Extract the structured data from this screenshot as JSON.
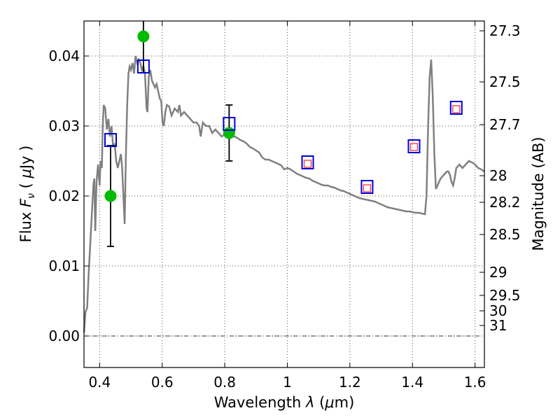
{
  "chart_data": {
    "type": "scatter",
    "xlabel_prefix": "Wavelength  ",
    "xlabel_symbol": "λ",
    "xlabel_unit_open": " (",
    "xlabel_unit_mu": "μ",
    "xlabel_unit_close": "m)",
    "ylabel_prefix": "Flux  ",
    "ylabel_symbol": "F",
    "ylabel_subscript": "ν",
    "ylabel_unit_open": "  ( ",
    "ylabel_unit_mu": "μ",
    "ylabel_unit_close": "Jy )",
    "y2label": "Magnitude (AB)",
    "xlim": [
      0.35,
      1.63
    ],
    "ylim": [
      -0.0045,
      0.045
    ],
    "grid": true,
    "x_ticks": [
      0.4,
      0.6,
      0.8,
      1.0,
      1.2,
      1.4,
      1.6
    ],
    "x_tick_labels": [
      "0.4",
      "0.6",
      "0.8",
      "1",
      "1.2",
      "1.4",
      "1.6"
    ],
    "y_ticks": [
      0.0,
      0.01,
      0.02,
      0.03,
      0.04
    ],
    "y_tick_labels": [
      "0.00",
      "0.01",
      "0.02",
      "0.03",
      "0.04"
    ],
    "y2_ticks": [
      {
        "label": "27.3",
        "flux": 0.0436
      },
      {
        "label": "27.5",
        "flux": 0.0363
      },
      {
        "label": "27.7",
        "flux": 0.0302
      },
      {
        "label": "28",
        "flux": 0.0229
      },
      {
        "label": "28.2",
        "flux": 0.0191
      },
      {
        "label": "28.5",
        "flux": 0.0145
      },
      {
        "label": "29",
        "flux": 0.0091
      },
      {
        "label": "29.5",
        "flux": 0.0058
      },
      {
        "label": "30",
        "flux": 0.0036
      },
      {
        "label": "31",
        "flux": 0.0015
      }
    ],
    "zero_line": 0.0,
    "colors": {
      "model": "#808080",
      "observed": "#00bb00",
      "model_photometry": "#0000dd",
      "upper_limits": "#ff3333",
      "errorbar": "#000000"
    },
    "model_spectrum": [
      [
        0.35,
        0.0005
      ],
      [
        0.355,
        0.0035
      ],
      [
        0.36,
        0.004
      ],
      [
        0.365,
        0.009
      ],
      [
        0.37,
        0.013
      ],
      [
        0.375,
        0.0175
      ],
      [
        0.38,
        0.0215
      ],
      [
        0.383,
        0.0225
      ],
      [
        0.386,
        0.015
      ],
      [
        0.39,
        0.022
      ],
      [
        0.395,
        0.0245
      ],
      [
        0.4,
        0.0215
      ],
      [
        0.403,
        0.025
      ],
      [
        0.407,
        0.024
      ],
      [
        0.41,
        0.03
      ],
      [
        0.413,
        0.033
      ],
      [
        0.418,
        0.0325
      ],
      [
        0.423,
        0.0295
      ],
      [
        0.428,
        0.031
      ],
      [
        0.433,
        0.0285
      ],
      [
        0.438,
        0.03
      ],
      [
        0.443,
        0.027
      ],
      [
        0.448,
        0.0275
      ],
      [
        0.453,
        0.025
      ],
      [
        0.458,
        0.024
      ],
      [
        0.463,
        0.025
      ],
      [
        0.468,
        0.026
      ],
      [
        0.472,
        0.024
      ],
      [
        0.476,
        0.02
      ],
      [
        0.48,
        0.016
      ],
      [
        0.484,
        0.026
      ],
      [
        0.488,
        0.033
      ],
      [
        0.492,
        0.0375
      ],
      [
        0.496,
        0.0385
      ],
      [
        0.5,
        0.038
      ],
      [
        0.505,
        0.039
      ],
      [
        0.51,
        0.0375
      ],
      [
        0.515,
        0.04
      ],
      [
        0.52,
        0.039
      ],
      [
        0.525,
        0.0395
      ],
      [
        0.53,
        0.039
      ],
      [
        0.535,
        0.038
      ],
      [
        0.54,
        0.0385
      ],
      [
        0.545,
        0.0375
      ],
      [
        0.55,
        0.0325
      ],
      [
        0.553,
        0.032
      ],
      [
        0.557,
        0.037
      ],
      [
        0.562,
        0.038
      ],
      [
        0.567,
        0.0365
      ],
      [
        0.572,
        0.036
      ],
      [
        0.577,
        0.0355
      ],
      [
        0.582,
        0.036
      ],
      [
        0.587,
        0.035
      ],
      [
        0.592,
        0.034
      ],
      [
        0.597,
        0.0335
      ],
      [
        0.601,
        0.0305
      ],
      [
        0.605,
        0.03
      ],
      [
        0.61,
        0.032
      ],
      [
        0.615,
        0.033
      ],
      [
        0.622,
        0.0328
      ],
      [
        0.63,
        0.0315
      ],
      [
        0.64,
        0.0325
      ],
      [
        0.65,
        0.032
      ],
      [
        0.655,
        0.033
      ],
      [
        0.66,
        0.0315
      ],
      [
        0.67,
        0.032
      ],
      [
        0.68,
        0.0315
      ],
      [
        0.69,
        0.031
      ],
      [
        0.7,
        0.0305
      ],
      [
        0.71,
        0.0305
      ],
      [
        0.718,
        0.03
      ],
      [
        0.723,
        0.0285
      ],
      [
        0.73,
        0.0305
      ],
      [
        0.74,
        0.03
      ],
      [
        0.75,
        0.03
      ],
      [
        0.76,
        0.029
      ],
      [
        0.77,
        0.0295
      ],
      [
        0.78,
        0.029
      ],
      [
        0.79,
        0.0285
      ],
      [
        0.8,
        0.0288
      ],
      [
        0.81,
        0.0292
      ],
      [
        0.82,
        0.0288
      ],
      [
        0.83,
        0.0285
      ],
      [
        0.84,
        0.0283
      ],
      [
        0.85,
        0.028
      ],
      [
        0.86,
        0.0278
      ],
      [
        0.87,
        0.0275
      ],
      [
        0.88,
        0.027
      ],
      [
        0.89,
        0.0268
      ],
      [
        0.9,
        0.0265
      ],
      [
        0.91,
        0.0262
      ],
      [
        0.92,
        0.0255
      ],
      [
        0.93,
        0.0252
      ],
      [
        0.94,
        0.0252
      ],
      [
        0.95,
        0.025
      ],
      [
        0.96,
        0.0248
      ],
      [
        0.97,
        0.0246
      ],
      [
        0.98,
        0.0244
      ],
      [
        0.99,
        0.0238
      ],
      [
        1.0,
        0.024
      ],
      [
        1.01,
        0.0238
      ],
      [
        1.02,
        0.0235
      ],
      [
        1.03,
        0.0232
      ],
      [
        1.04,
        0.023
      ],
      [
        1.05,
        0.0228
      ],
      [
        1.06,
        0.0226
      ],
      [
        1.07,
        0.0225
      ],
      [
        1.08,
        0.0222
      ],
      [
        1.09,
        0.022
      ],
      [
        1.1,
        0.0218
      ],
      [
        1.11,
        0.0216
      ],
      [
        1.12,
        0.0215
      ],
      [
        1.13,
        0.0215
      ],
      [
        1.14,
        0.0213
      ],
      [
        1.15,
        0.0212
      ],
      [
        1.16,
        0.021
      ],
      [
        1.17,
        0.0208
      ],
      [
        1.18,
        0.0207
      ],
      [
        1.19,
        0.0205
      ],
      [
        1.2,
        0.0203
      ],
      [
        1.21,
        0.0201
      ],
      [
        1.22,
        0.0199
      ],
      [
        1.23,
        0.0197
      ],
      [
        1.24,
        0.0196
      ],
      [
        1.25,
        0.0195
      ],
      [
        1.26,
        0.0194
      ],
      [
        1.27,
        0.0193
      ],
      [
        1.28,
        0.0192
      ],
      [
        1.29,
        0.019
      ],
      [
        1.3,
        0.0188
      ],
      [
        1.31,
        0.0186
      ],
      [
        1.32,
        0.0184
      ],
      [
        1.33,
        0.0183
      ],
      [
        1.34,
        0.0182
      ],
      [
        1.35,
        0.0181
      ],
      [
        1.36,
        0.018
      ],
      [
        1.37,
        0.0179
      ],
      [
        1.38,
        0.0178
      ],
      [
        1.39,
        0.0178
      ],
      [
        1.4,
        0.0177
      ],
      [
        1.41,
        0.0176
      ],
      [
        1.42,
        0.0176
      ],
      [
        1.43,
        0.0175
      ],
      [
        1.44,
        0.0174
      ],
      [
        1.445,
        0.02
      ],
      [
        1.45,
        0.03
      ],
      [
        1.455,
        0.037
      ],
      [
        1.46,
        0.0395
      ],
      [
        1.465,
        0.034
      ],
      [
        1.47,
        0.026
      ],
      [
        1.475,
        0.021
      ],
      [
        1.48,
        0.0215
      ],
      [
        1.49,
        0.0225
      ],
      [
        1.5,
        0.023
      ],
      [
        1.51,
        0.0235
      ],
      [
        1.515,
        0.0235
      ],
      [
        1.52,
        0.023
      ],
      [
        1.525,
        0.022
      ],
      [
        1.53,
        0.0215
      ],
      [
        1.535,
        0.0225
      ],
      [
        1.54,
        0.024
      ],
      [
        1.55,
        0.0245
      ],
      [
        1.56,
        0.024
      ],
      [
        1.57,
        0.0245
      ],
      [
        1.58,
        0.025
      ],
      [
        1.59,
        0.0248
      ],
      [
        1.6,
        0.0245
      ],
      [
        1.61,
        0.024
      ],
      [
        1.62,
        0.0238
      ],
      [
        1.63,
        0.0235
      ]
    ],
    "observed_points": [
      {
        "x": 0.435,
        "y": 0.02,
        "yerr_low": 0.0072,
        "yerr_high": 0.0072
      },
      {
        "x": 0.54,
        "y": 0.0428,
        "yerr_low": 0.0052,
        "yerr_high": 0.006
      },
      {
        "x": 0.814,
        "y": 0.029,
        "yerr_low": 0.004,
        "yerr_high": 0.004
      }
    ],
    "model_photometry": [
      {
        "x": 0.435,
        "y": 0.028
      },
      {
        "x": 0.54,
        "y": 0.0385
      },
      {
        "x": 0.814,
        "y": 0.0303
      },
      {
        "x": 1.065,
        "y": 0.0248
      },
      {
        "x": 1.255,
        "y": 0.0213
      },
      {
        "x": 1.405,
        "y": 0.0271
      },
      {
        "x": 1.54,
        "y": 0.0326
      }
    ],
    "upper_limit_points": [
      {
        "x": 1.065,
        "y": 0.0246
      },
      {
        "x": 1.255,
        "y": 0.0211
      },
      {
        "x": 1.405,
        "y": 0.027
      },
      {
        "x": 1.54,
        "y": 0.0324
      }
    ]
  }
}
